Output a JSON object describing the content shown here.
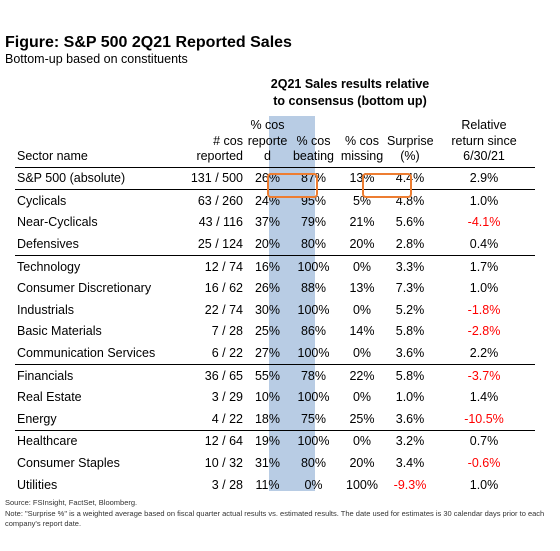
{
  "title": "Figure: S&P 500 2Q21 Reported Sales",
  "subtitle": "Bottom-up based on constituents",
  "group_header": {
    "line1": "2Q21 Sales results relative",
    "line2": "to consensus (bottom up)"
  },
  "columns": {
    "sector": "Sector name",
    "reported_l1": "# cos",
    "reported_l2": "reported",
    "pct_reported_l1": "% cos",
    "pct_reported_l2": "reporte",
    "pct_reported_l3": "d",
    "beating_l1": "% cos",
    "beating_l2": "beating",
    "missing_l1": "% cos",
    "missing_l2": "missing",
    "surprise_l1": "Surprise",
    "surprise_l2": "(%)",
    "relative_l1": "Relative",
    "relative_l2": "return since",
    "relative_l3": "6/30/21"
  },
  "rows": [
    {
      "sector": "S&P 500 (absolute)",
      "reported": "131 / 500",
      "pct_reported": "26%",
      "beating": "87%",
      "missing": "13%",
      "surprise": "4.4%",
      "relative": "2.9%"
    },
    {
      "sector": "Cyclicals",
      "reported": "63 / 260",
      "pct_reported": "24%",
      "beating": "95%",
      "missing": "5%",
      "surprise": "4.8%",
      "relative": "1.0%"
    },
    {
      "sector": "Near-Cyclicals",
      "reported": "43 / 116",
      "pct_reported": "37%",
      "beating": "79%",
      "missing": "21%",
      "surprise": "5.6%",
      "relative": "-4.1%"
    },
    {
      "sector": "Defensives",
      "reported": "25 / 124",
      "pct_reported": "20%",
      "beating": "80%",
      "missing": "20%",
      "surprise": "2.8%",
      "relative": "0.4%"
    },
    {
      "sector": "Technology",
      "reported": "12 / 74",
      "pct_reported": "16%",
      "beating": "100%",
      "missing": "0%",
      "surprise": "3.3%",
      "relative": "1.7%"
    },
    {
      "sector": "Consumer Discretionary",
      "reported": "16 / 62",
      "pct_reported": "26%",
      "beating": "88%",
      "missing": "13%",
      "surprise": "7.3%",
      "relative": "1.0%"
    },
    {
      "sector": "Industrials",
      "reported": "22 / 74",
      "pct_reported": "30%",
      "beating": "100%",
      "missing": "0%",
      "surprise": "5.2%",
      "relative": "-1.8%"
    },
    {
      "sector": "Basic Materials",
      "reported": "7 / 28",
      "pct_reported": "25%",
      "beating": "86%",
      "missing": "14%",
      "surprise": "5.8%",
      "relative": "-2.8%"
    },
    {
      "sector": "Communication Services",
      "reported": "6 / 22",
      "pct_reported": "27%",
      "beating": "100%",
      "missing": "0%",
      "surprise": "3.6%",
      "relative": "2.2%"
    },
    {
      "sector": "Financials",
      "reported": "36 / 65",
      "pct_reported": "55%",
      "beating": "78%",
      "missing": "22%",
      "surprise": "5.8%",
      "relative": "-3.7%"
    },
    {
      "sector": "Real Estate",
      "reported": "3 / 29",
      "pct_reported": "10%",
      "beating": "100%",
      "missing": "0%",
      "surprise": "1.0%",
      "relative": "1.4%"
    },
    {
      "sector": "Energy",
      "reported": "4 / 22",
      "pct_reported": "18%",
      "beating": "75%",
      "missing": "25%",
      "surprise": "3.6%",
      "relative": "-10.5%"
    },
    {
      "sector": "Healthcare",
      "reported": "12 / 64",
      "pct_reported": "19%",
      "beating": "100%",
      "missing": "0%",
      "surprise": "3.2%",
      "relative": "0.7%"
    },
    {
      "sector": "Consumer Staples",
      "reported": "10 / 32",
      "pct_reported": "31%",
      "beating": "80%",
      "missing": "20%",
      "surprise": "3.4%",
      "relative": "-0.6%"
    },
    {
      "sector": "Utilities",
      "reported": "3 / 28",
      "pct_reported": "11%",
      "beating": "0%",
      "missing": "100%",
      "surprise": "-9.3%",
      "relative": "1.0%"
    }
  ],
  "footnotes": {
    "source": "Source: FSInsight, FactSet, Bloomberg.",
    "note": "Note: \"Surprise %\" is a weighted average based on fiscal quarter actual results vs. estimated results.  The date used for estimates is 30 calendar days prior to each company's report date."
  },
  "colors": {
    "shade": "#b8cce4",
    "highlight": "#ed7d31",
    "negative": "#ff0000"
  }
}
